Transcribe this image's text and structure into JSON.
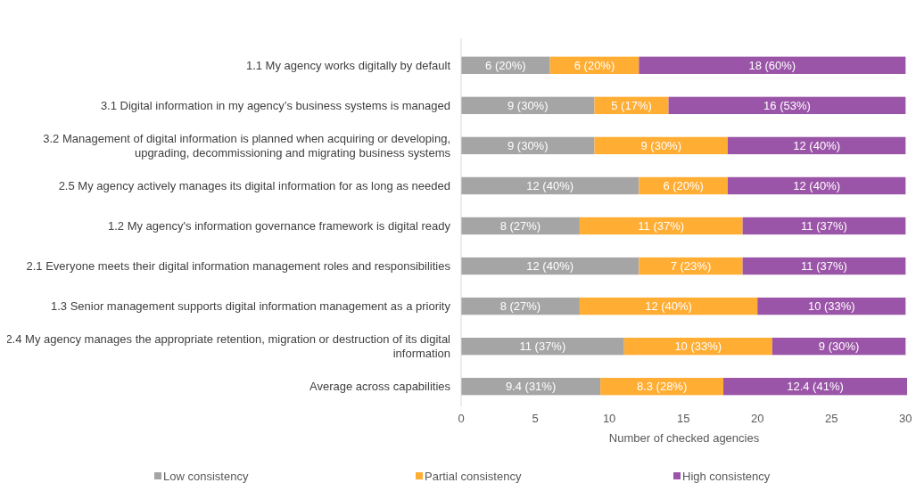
{
  "chart_data": {
    "type": "bar",
    "orientation": "horizontal",
    "stacked": true,
    "xlabel": "Number of checked agencies",
    "categories": [
      "1.1 My agency works digitally by default",
      "3.1 Digital information in my agency’s business systems is managed",
      "3.2 Management of digital information is planned when acquiring or developing, upgrading, decommissioning and migrating business systems",
      "2.5 My agency actively manages its digital information for as long as needed",
      "1.2 My agency's information governance framework is digital ready",
      "2.1 Everyone meets their digital information management roles and responsibilities",
      "1.3 Senior management supports digital information management as a priority",
      "2.4 My agency manages the appropriate retention, migration or destruction of its digital information",
      "Average across capabilities"
    ],
    "series": [
      {
        "name": "Low consistency",
        "color": "#a5a5a5",
        "values": [
          6,
          9,
          9,
          12,
          8,
          12,
          8,
          11,
          9.4
        ],
        "value_labels": [
          "6 (20%)",
          "9 (30%)",
          "9 (30%)",
          "12 (40%)",
          "8 (27%)",
          "12 (40%)",
          "8 (27%)",
          "11 (37%)",
          "9.4 (31%)"
        ]
      },
      {
        "name": "Partial consistency",
        "color": "#ffad33",
        "values": [
          6,
          5,
          9,
          6,
          11,
          7,
          12,
          10,
          8.3
        ],
        "value_labels": [
          "6 (20%)",
          "5 (17%)",
          "9 (30%)",
          "6 (20%)",
          "11 (37%)",
          "7 (23%)",
          "12 (40%)",
          "10 (33%)",
          "8.3 (28%)"
        ]
      },
      {
        "name": "High consistency",
        "color": "#9b55a8",
        "values": [
          18,
          16,
          12,
          12,
          11,
          11,
          10,
          9,
          12.4
        ],
        "value_labels": [
          "18 (60%)",
          "16 (53%)",
          "12 (40%)",
          "12 (40%)",
          "11 (37%)",
          "11 (37%)",
          "10 (33%)",
          "9 (30%)",
          "12.4 (41%)"
        ]
      }
    ],
    "xlim": [
      0,
      30.1
    ],
    "xticks": [
      0,
      5,
      10,
      15,
      20,
      25,
      30
    ],
    "grid": false,
    "legend": "bottom"
  }
}
